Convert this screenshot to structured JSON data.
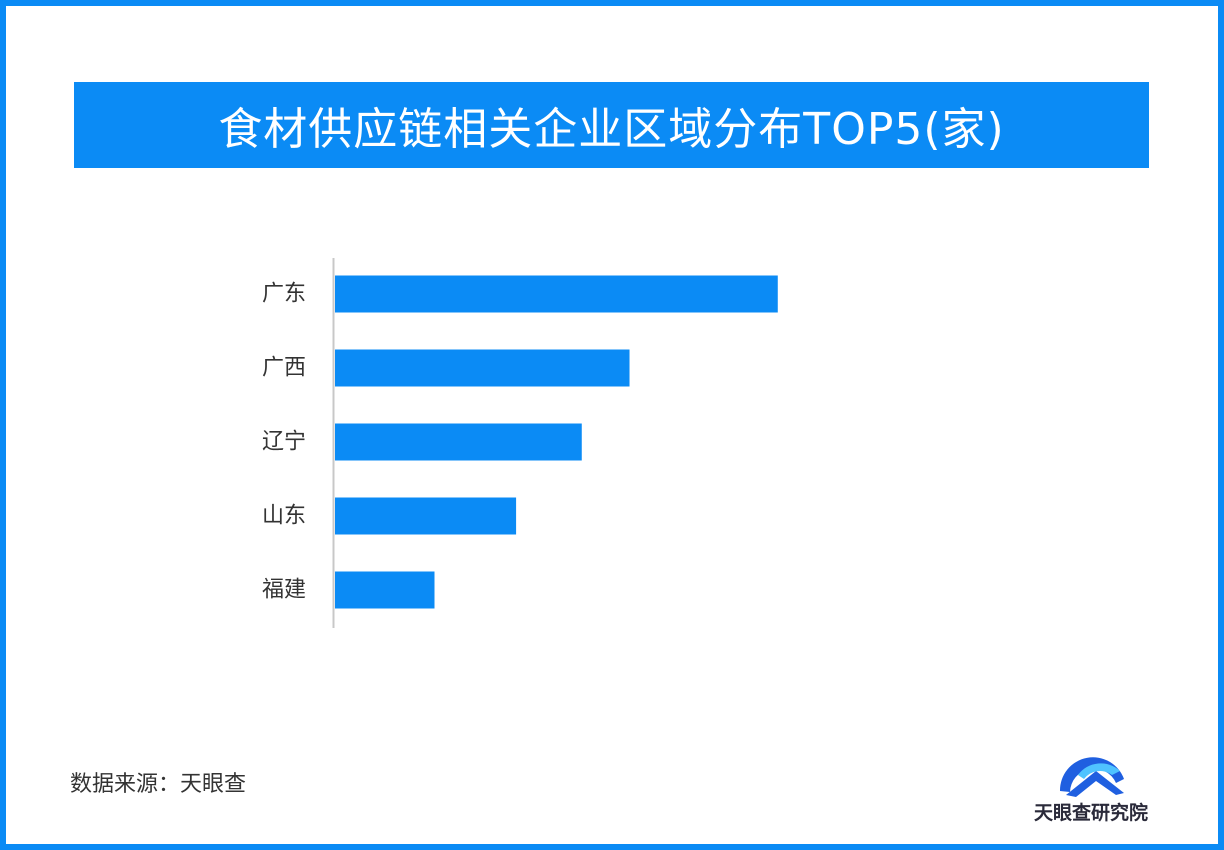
{
  "title": "食材供应链相关企业区域分布TOP5(家)",
  "source": "数据来源：天眼查",
  "logo": {
    "text": "天眼查研究院",
    "icon": "tianyancha-logo-icon"
  },
  "colors": {
    "accent": "#0b8bf5",
    "logo_blue": "#1f5fe0"
  },
  "chart_data": {
    "type": "bar",
    "orientation": "horizontal",
    "categories": [
      "广东",
      "广西",
      "辽宁",
      "山东",
      "福建"
    ],
    "values": [
      445,
      296,
      248,
      182,
      100
    ],
    "xlim": [
      0,
      600
    ]
  }
}
